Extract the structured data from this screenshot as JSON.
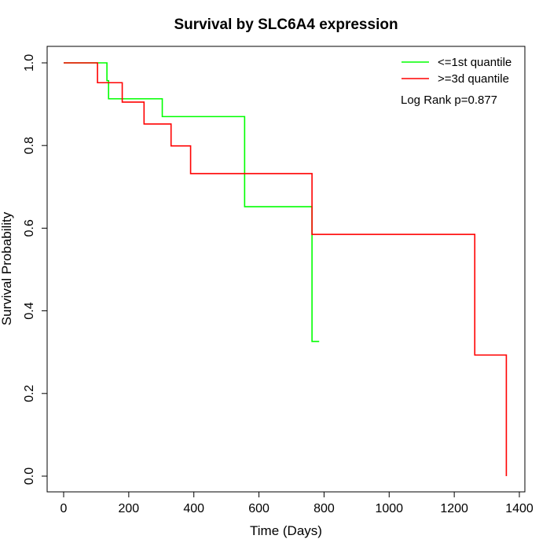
{
  "chart_data": {
    "type": "line",
    "step": true,
    "title": "Survival by SLC6A4 expression",
    "xlabel": "Time (Days)",
    "ylabel": "Survival Probability",
    "xlim": [
      0,
      1400
    ],
    "ylim": [
      0,
      1.0
    ],
    "xticks": [
      "0",
      "200",
      "400",
      "600",
      "800",
      "1000",
      "1200",
      "1400"
    ],
    "yticks": [
      "0.0",
      "0.2",
      "0.4",
      "0.6",
      "0.8",
      "1.0"
    ],
    "grid": false,
    "legend_position": "top-right",
    "annotation": "Log Rank p=0.877",
    "series": [
      {
        "name": "<=1st quantile",
        "color": "#00ff00",
        "x": [
          0,
          133,
          138,
          303,
          556,
          763,
          785
        ],
        "y": [
          1.0,
          0.957,
          0.913,
          0.87,
          0.652,
          0.326,
          0.326
        ]
      },
      {
        "name": ">=3d quantile",
        "color": "#ff0000",
        "x": [
          0,
          104,
          180,
          247,
          330,
          390,
          763,
          1263,
          1360
        ],
        "y": [
          1.0,
          0.952,
          0.905,
          0.852,
          0.799,
          0.732,
          0.585,
          0.293,
          0.0
        ]
      }
    ]
  }
}
